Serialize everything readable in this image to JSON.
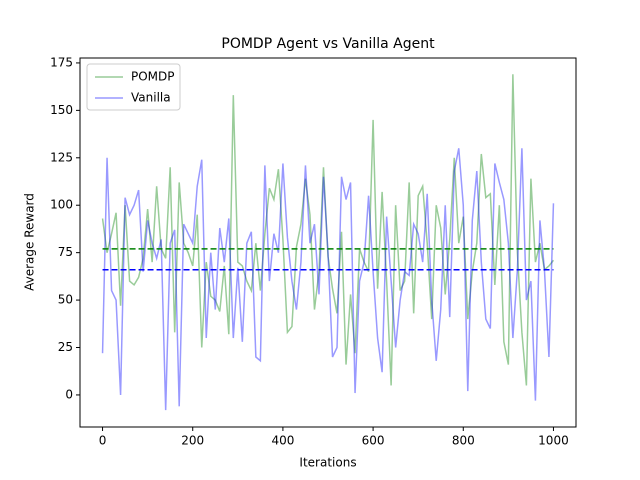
{
  "chart_data": {
    "type": "line",
    "title": "POMDP Agent vs Vanilla Agent",
    "x_label": "Iterations",
    "y_label": "Average Reward",
    "x": [
      0,
      10,
      20,
      30,
      40,
      50,
      60,
      70,
      80,
      90,
      100,
      110,
      120,
      130,
      140,
      150,
      160,
      170,
      180,
      190,
      200,
      210,
      220,
      230,
      240,
      250,
      260,
      270,
      280,
      290,
      300,
      310,
      320,
      330,
      340,
      350,
      360,
      370,
      380,
      390,
      400,
      410,
      420,
      430,
      440,
      450,
      460,
      470,
      480,
      490,
      500,
      510,
      520,
      530,
      540,
      550,
      560,
      570,
      580,
      590,
      600,
      610,
      620,
      630,
      640,
      650,
      660,
      670,
      680,
      690,
      700,
      710,
      720,
      730,
      740,
      750,
      760,
      770,
      780,
      790,
      800,
      810,
      820,
      830,
      840,
      850,
      860,
      870,
      880,
      890,
      900,
      910,
      920,
      930,
      940,
      950,
      960,
      970,
      980,
      990,
      1000
    ],
    "series": [
      {
        "name": "POMDP",
        "color": "green",
        "alpha": 0.4,
        "values": [
          93,
          75,
          85,
          96,
          47,
          100,
          60,
          58,
          62,
          72,
          98,
          70,
          110,
          77,
          72,
          120,
          33,
          112,
          80,
          75,
          68,
          95,
          25,
          70,
          52,
          50,
          44,
          68,
          32,
          158,
          70,
          68,
          60,
          55,
          80,
          55,
          85,
          109,
          103,
          119,
          82,
          33,
          36,
          78,
          90,
          114,
          95,
          45,
          65,
          120,
          73,
          56,
          43,
          86,
          16,
          53,
          22,
          77,
          70,
          65,
          145,
          56,
          107,
          60,
          5,
          100,
          55,
          60,
          112,
          43,
          105,
          110,
          80,
          40,
          100,
          88,
          53,
          82,
          125,
          80,
          94,
          40,
          65,
          80,
          127,
          104,
          106,
          58,
          100,
          28,
          16,
          169,
          75,
          33,
          5,
          114,
          70,
          80,
          66,
          68,
          71
        ]
      },
      {
        "name": "Vanilla",
        "color": "blue",
        "alpha": 0.4,
        "values": [
          22,
          125,
          55,
          50,
          0,
          104,
          95,
          100,
          108,
          65,
          92,
          80,
          72,
          82,
          -8,
          80,
          87,
          -6,
          90,
          85,
          80,
          110,
          124,
          30,
          75,
          45,
          88,
          70,
          93,
          30,
          67,
          28,
          80,
          86,
          20,
          18,
          121,
          60,
          85,
          75,
          122,
          83,
          60,
          45,
          70,
          121,
          80,
          90,
          53,
          115,
          75,
          20,
          25,
          115,
          103,
          112,
          1,
          60,
          70,
          105,
          65,
          30,
          12,
          94,
          60,
          25,
          50,
          65,
          63,
          90,
          85,
          70,
          106,
          50,
          18,
          45,
          100,
          41,
          118,
          130,
          100,
          2,
          92,
          118,
          70,
          40,
          35,
          122,
          112,
          103,
          80,
          30,
          66,
          130,
          50,
          60,
          -3,
          92,
          66,
          20,
          101
        ]
      }
    ],
    "hlines": [
      {
        "value": 77,
        "color": "green"
      },
      {
        "value": 66,
        "color": "blue"
      }
    ],
    "xlim": [
      -50,
      1050
    ],
    "ylim": [
      -16.9,
      177.6
    ],
    "xticks": [
      0,
      200,
      400,
      600,
      800,
      1000
    ],
    "yticks": [
      0,
      25,
      50,
      75,
      100,
      125,
      150,
      175
    ],
    "legend": "upper left"
  }
}
